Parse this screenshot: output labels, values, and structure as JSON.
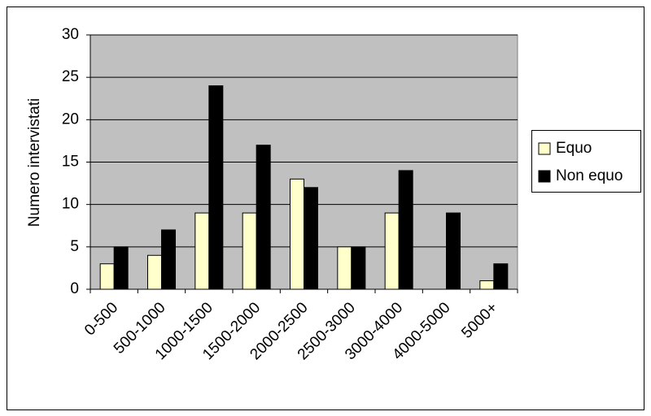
{
  "chart_data": {
    "type": "bar",
    "categories": [
      "0-500",
      "500-1000",
      "1000-1500",
      "1500-2000",
      "2000-2500",
      "2500-3000",
      "3000-4000",
      "4000-5000",
      "5000+"
    ],
    "series": [
      {
        "name": "Equo",
        "color": "#ffffcc",
        "values": [
          3,
          4,
          9,
          9,
          13,
          5,
          9,
          0,
          1
        ]
      },
      {
        "name": "Non equo",
        "color": "#000000",
        "values": [
          5,
          7,
          24,
          17,
          12,
          5,
          14,
          9,
          3
        ]
      }
    ],
    "y_label": "Numero intervistati",
    "ylim": [
      0,
      30
    ],
    "yticks": [
      0,
      5,
      10,
      15,
      20,
      25,
      30
    ],
    "grid": true,
    "legend": "right",
    "plot_background": "#c0c0c0"
  }
}
